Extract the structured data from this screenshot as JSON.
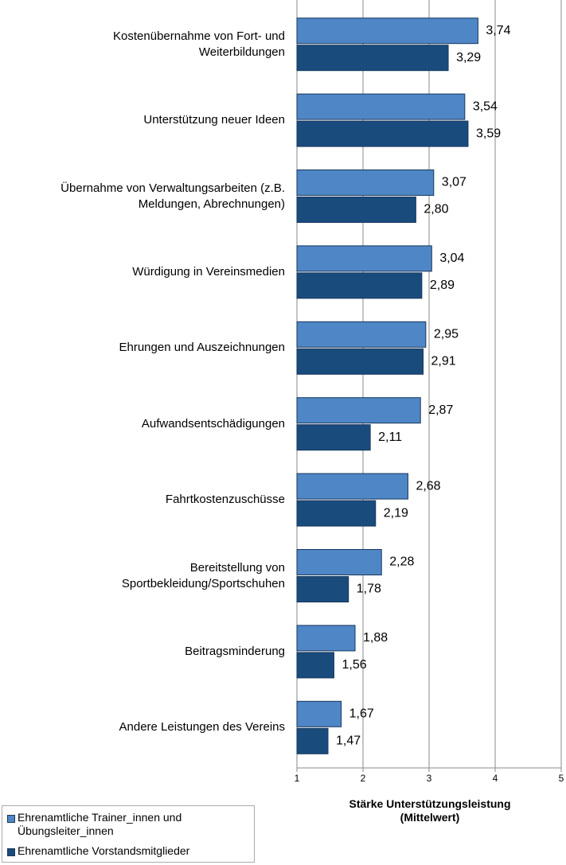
{
  "chart_data": {
    "type": "bar",
    "orientation": "horizontal",
    "categories": [
      "Kostenübernahme von Fort- und\nWeiterbildungen",
      "Unterstützung neuer Ideen",
      "Übernahme von Verwaltungsarbeiten (z.B.\nMeldungen, Abrechnungen)",
      "Würdigung in Vereinsmedien",
      "Ehrungen und Auszeichnungen",
      "Aufwandsentschädigungen",
      "Fahrtkostenzuschüsse",
      "Bereitstellung von\nSportbekleidung/Sportschuhen",
      "Beitragsminderung",
      "Andere Leistungen des Vereins"
    ],
    "series": [
      {
        "name": "Ehrenamtliche Trainer_innen und\nÜbungsleiter_innen",
        "color": "#4f86c6",
        "values": [
          3.74,
          3.54,
          3.07,
          3.04,
          2.95,
          2.87,
          2.68,
          2.28,
          1.88,
          1.67
        ],
        "value_labels": [
          "3,74",
          "3,54",
          "3,07",
          "3,04",
          "2,95",
          "2,87",
          "2,68",
          "2,28",
          "1,88",
          "1,67"
        ]
      },
      {
        "name": "Ehrenamtliche Vorstandsmitglieder",
        "color": "#1a4b7d",
        "values": [
          3.29,
          3.59,
          2.8,
          2.89,
          2.91,
          2.11,
          2.19,
          1.78,
          1.56,
          1.47
        ],
        "value_labels": [
          "3,29",
          "3,59",
          "2,80",
          "2,89",
          "2,91",
          "2,11",
          "2,19",
          "1,78",
          "1,56",
          "1,47"
        ]
      }
    ],
    "xlim": [
      1,
      5
    ],
    "xticks": [
      1,
      2,
      3,
      4,
      5
    ],
    "grid": true,
    "xlabel": "Stärke Unterstützungsleistung\n(Mittelwert)",
    "legend": "bottom-left"
  }
}
